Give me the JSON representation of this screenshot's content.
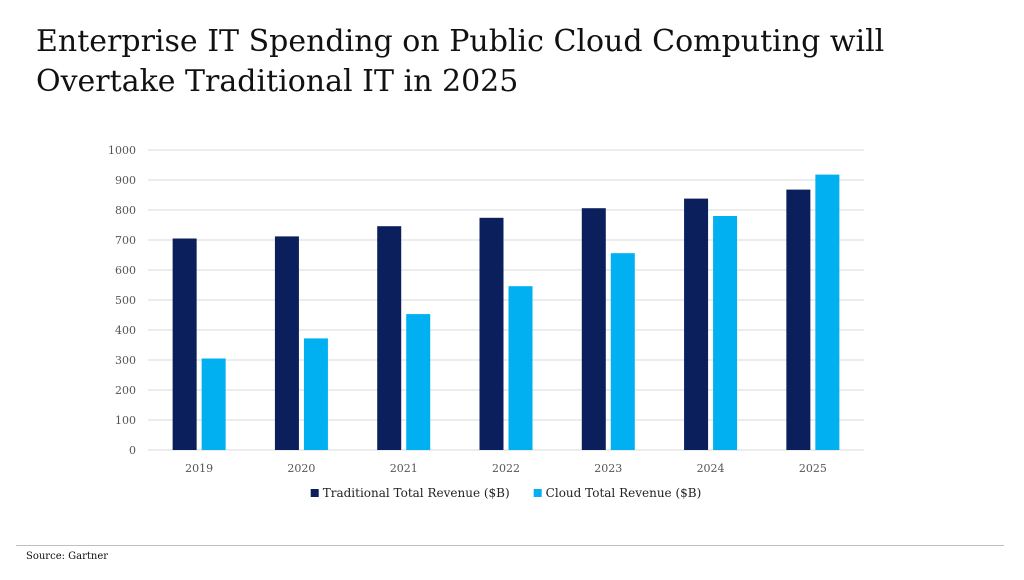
{
  "slide": {
    "title_line1": "Enterprise IT Spending on Public Cloud Computing will",
    "title_line2": "Overtake Traditional IT in 2025",
    "source": "Source: Gartner"
  },
  "colors": {
    "traditional": "#0b1f5c",
    "cloud": "#00b0f0",
    "grid": "#d9d9d9"
  },
  "chart_data": {
    "type": "bar",
    "title": "",
    "xlabel": "",
    "ylabel": "",
    "categories": [
      "2019",
      "2020",
      "2021",
      "2022",
      "2023",
      "2024",
      "2025"
    ],
    "series": [
      {
        "name": "Traditional Total Revenue ($B)",
        "values": [
          705,
          712,
          746,
          774,
          806,
          838,
          868
        ]
      },
      {
        "name": "Cloud Total Revenue ($B)",
        "values": [
          305,
          372,
          453,
          546,
          656,
          780,
          918
        ]
      }
    ],
    "ylim": [
      0,
      1000
    ],
    "yticks": [
      "0",
      "100",
      "200",
      "300",
      "400",
      "500",
      "600",
      "700",
      "800",
      "900",
      "1000"
    ],
    "grid": true,
    "legend_position": "bottom"
  }
}
